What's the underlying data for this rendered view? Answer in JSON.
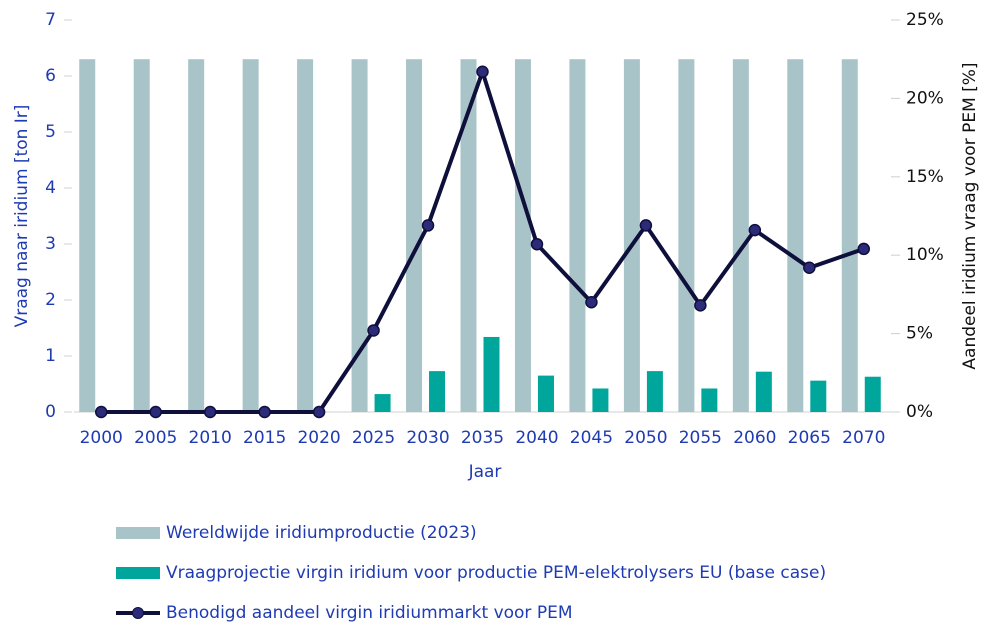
{
  "chart_data": {
    "type": "bar_line",
    "xlabel": "Jaar",
    "ylabel": "Vraag naar iridium [ton Ir]",
    "y2label": "Aandeel iridium vraag voor PEM [%]",
    "categories": [
      "2000",
      "2005",
      "2010",
      "2015",
      "2020",
      "2025",
      "2030",
      "2035",
      "2040",
      "2045",
      "2050",
      "2055",
      "2060",
      "2065",
      "2070"
    ],
    "series": [
      {
        "name": "Wereldwijde iridiumproductie (2023)",
        "type": "bar",
        "color": "#a9c4c8",
        "values": [
          6.3,
          6.3,
          6.3,
          6.3,
          6.3,
          6.3,
          6.3,
          6.3,
          6.3,
          6.3,
          6.3,
          6.3,
          6.3,
          6.3,
          6.3
        ]
      },
      {
        "name": "Vraagprojectie virgin iridium voor productie PEM-elektrolysers EU (base case)",
        "type": "bar",
        "color": "#00a69c",
        "values": [
          0,
          0,
          0,
          0,
          0,
          0.32,
          0.73,
          1.34,
          0.65,
          0.42,
          0.73,
          0.42,
          0.72,
          0.56,
          0.63
        ]
      },
      {
        "name": "Benodigd aandeel virgin iridiummarkt voor PEM",
        "type": "line",
        "axis": "y2",
        "color": "#0f0f3c",
        "marker_color": "#2b2b7a",
        "values": [
          0,
          0,
          0,
          0,
          0,
          5.2,
          11.9,
          21.7,
          10.7,
          7.0,
          11.9,
          6.8,
          11.6,
          9.2,
          10.4
        ]
      }
    ],
    "ylim": [
      0,
      7
    ],
    "yticks": [
      0,
      1,
      2,
      3,
      4,
      5,
      6,
      7
    ],
    "y2lim": [
      0,
      25
    ],
    "y2ticks": [
      {
        "value": 0,
        "label": "0%"
      },
      {
        "value": 5,
        "label": "5%"
      },
      {
        "value": 10,
        "label": "10%"
      },
      {
        "value": 15,
        "label": "15%"
      },
      {
        "value": 20,
        "label": "20%"
      },
      {
        "value": 25,
        "label": "25%"
      }
    ],
    "grid": false,
    "legend": "bottom-left"
  }
}
